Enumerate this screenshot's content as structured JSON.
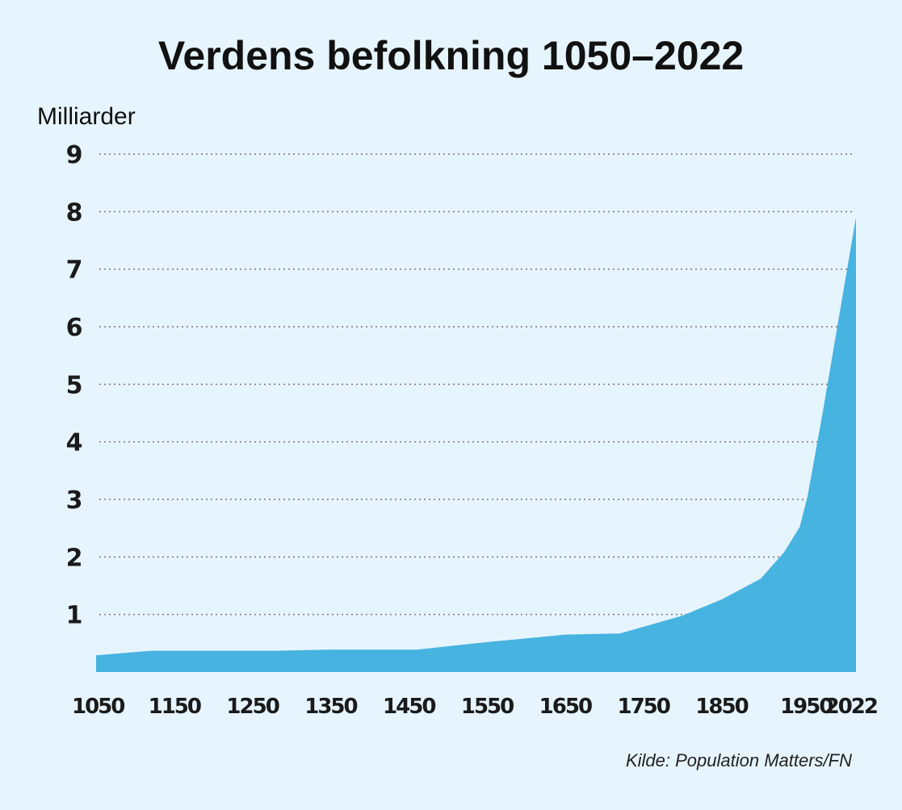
{
  "chart_data": {
    "type": "area",
    "title": "Verdens befolkning 1050–2022",
    "ylabel": "Milliarder",
    "xlabel": "",
    "source": "Kilde: Population Matters/FN",
    "xlim": [
      1050,
      2022
    ],
    "ylim": [
      0,
      9
    ],
    "yticks": [
      "1",
      "2",
      "3",
      "4",
      "5",
      "6",
      "7",
      "8",
      "9"
    ],
    "xticks": [
      {
        "value": 1050,
        "label": "1050"
      },
      {
        "value": 1150,
        "label": "1150"
      },
      {
        "value": 1250,
        "label": "1250"
      },
      {
        "value": 1350,
        "label": "1350"
      },
      {
        "value": 1450,
        "label": "1450"
      },
      {
        "value": 1550,
        "label": "1550"
      },
      {
        "value": 1650,
        "label": "1650"
      },
      {
        "value": 1750,
        "label": "1750"
      },
      {
        "value": 1850,
        "label": "1850"
      },
      {
        "value": 1950,
        "label": "1950"
      },
      {
        "value": 2022,
        "label": "2022"
      }
    ],
    "grid": true,
    "fill_color": "#47b3e0",
    "series": [
      {
        "x": [
          1050,
          1120,
          1280,
          1350,
          1460,
          1550,
          1650,
          1720,
          1800,
          1850,
          1900,
          1930,
          1950,
          1960,
          1970,
          1980,
          1990,
          2000,
          2010,
          2022
        ],
        "y": [
          0.29,
          0.37,
          0.37,
          0.39,
          0.39,
          0.52,
          0.65,
          0.67,
          0.98,
          1.26,
          1.62,
          2.08,
          2.52,
          3.05,
          3.8,
          4.55,
          5.35,
          6.15,
          6.95,
          7.9
        ]
      }
    ]
  }
}
